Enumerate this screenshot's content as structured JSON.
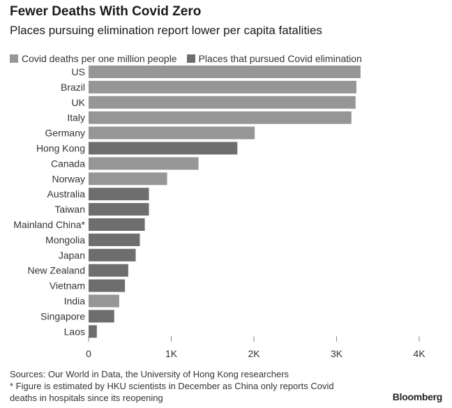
{
  "header": {
    "title": "Fewer Deaths With Covid Zero",
    "subtitle": "Places pursuing elimination report lower per capita fatalities"
  },
  "legend": [
    {
      "label": "Covid deaths per one million people",
      "color": "#969696"
    },
    {
      "label": "Places that pursued Covid elimination",
      "color": "#6e6e6e"
    }
  ],
  "chart_data": {
    "type": "bar",
    "orientation": "horizontal",
    "title": "Fewer Deaths With Covid Zero",
    "subtitle": "Places pursuing elimination report lower per capita fatalities",
    "xlabel": "",
    "ylabel": "",
    "xlim": [
      0,
      4000
    ],
    "x_ticks": [
      0,
      1000,
      2000,
      3000,
      4000
    ],
    "x_tick_labels": [
      "0",
      "1K",
      "2K",
      "3K",
      "4K"
    ],
    "grid": "vertical ticks only",
    "legend_position": "top",
    "categories": [
      "US",
      "Brazil",
      "UK",
      "Italy",
      "Germany",
      "Hong Kong",
      "Canada",
      "Norway",
      "Australia",
      "Taiwan",
      "Mainland China*",
      "Mongolia",
      "Japan",
      "New Zealand",
      "Vietnam",
      "India",
      "Singapore",
      "Laos"
    ],
    "values": [
      3290,
      3240,
      3230,
      3180,
      2010,
      1800,
      1330,
      950,
      730,
      730,
      680,
      620,
      570,
      480,
      440,
      370,
      310,
      100
    ],
    "elimination": [
      false,
      false,
      false,
      false,
      false,
      true,
      false,
      false,
      true,
      true,
      true,
      true,
      true,
      true,
      true,
      false,
      true,
      true
    ],
    "colors": {
      "default": "#969696",
      "elimination": "#6e6e6e"
    }
  },
  "footer": {
    "sources": "Sources: Our World in Data, the University of Hong Kong researchers",
    "note_line1": "* Figure is estimated by HKU scientists in December as China only reports Covid",
    "note_line2": "deaths in hospitals since its reopening"
  },
  "brand": "Bloomberg"
}
